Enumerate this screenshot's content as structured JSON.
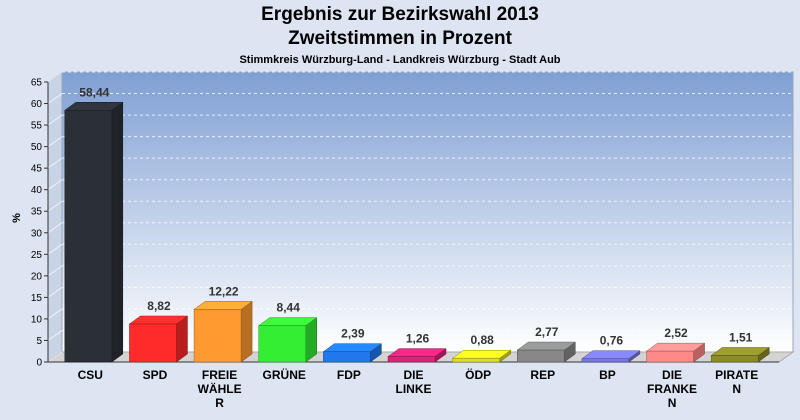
{
  "chart_data": {
    "type": "bar",
    "title": "Ergebnis zur Bezirkswahl 2013",
    "subtitle": "Zweitstimmen in Prozent",
    "subsubtitle": "Stimmkreis Würzburg-Land - Landkreis Würzburg - Stadt Aub",
    "ylabel": "%",
    "ylim": [
      0,
      65
    ],
    "yticks": [
      0,
      5,
      10,
      15,
      20,
      25,
      30,
      35,
      40,
      45,
      50,
      55,
      60,
      65
    ],
    "grid": true,
    "categories": [
      [
        "CSU"
      ],
      [
        "SPD"
      ],
      [
        "FREIE",
        "WÄHLE",
        "R"
      ],
      [
        "GRÜNE"
      ],
      [
        "FDP"
      ],
      [
        "DIE",
        "LINKE"
      ],
      [
        "ÖDP"
      ],
      [
        "REP"
      ],
      [
        "BP"
      ],
      [
        "DIE",
        "FRANKE",
        "N"
      ],
      [
        "PIRATE",
        "N"
      ]
    ],
    "values": [
      58.44,
      8.82,
      12.22,
      8.44,
      2.39,
      1.26,
      0.88,
      2.77,
      0.76,
      2.52,
      1.51
    ],
    "value_labels": [
      "58,44",
      "8,82",
      "12,22",
      "8,44",
      "2,39",
      "1,26",
      "0,88",
      "2,77",
      "0,76",
      "2,52",
      "1,51"
    ],
    "colors": [
      "#2b2f36",
      "#ff2a2a",
      "#ff9a30",
      "#33ee33",
      "#2277ee",
      "#dd2277",
      "#dddd22",
      "#888888",
      "#7777dd",
      "#ff8888",
      "#8b8b2a"
    ]
  }
}
